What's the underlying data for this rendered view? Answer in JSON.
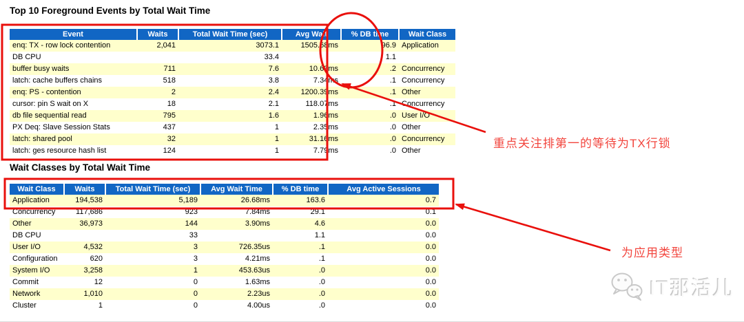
{
  "colors": {
    "table_header_bg": "#1166c4",
    "table_row_highlight": "#ffffcc",
    "annotation_red": "#e9100c",
    "annotation_text_red": "#f2453d",
    "watermark_gray": "#c8c8c8"
  },
  "top_events": {
    "title": "Top 10 Foreground Events by Total Wait Time",
    "table": {
      "headers": [
        "Event",
        "Waits",
        "Total Wait Time (sec)",
        "Avg Wait",
        "% DB time",
        "Wait Class"
      ],
      "rows": [
        [
          "enq: TX - row lock contention",
          "2,041",
          "3073.1",
          "1505.68ms",
          "96.9",
          "Application"
        ],
        [
          "DB CPU",
          "",
          "33.4",
          "",
          "1.1",
          ""
        ],
        [
          "buffer busy waits",
          "711",
          "7.6",
          "10.63ms",
          ".2",
          "Concurrency"
        ],
        [
          "latch: cache buffers chains",
          "518",
          "3.8",
          "7.34ms",
          ".1",
          "Concurrency"
        ],
        [
          "enq: PS - contention",
          "2",
          "2.4",
          "1200.39ms",
          ".1",
          "Other"
        ],
        [
          "cursor: pin S wait on X",
          "18",
          "2.1",
          "118.07ms",
          ".1",
          "Concurrency"
        ],
        [
          "db file sequential read",
          "795",
          "1.6",
          "1.96ms",
          ".0",
          "User I/O"
        ],
        [
          "PX Deq: Slave Session Stats",
          "437",
          "1",
          "2.35ms",
          ".0",
          "Other"
        ],
        [
          "latch: shared pool",
          "32",
          "1",
          "31.16ms",
          ".0",
          "Concurrency"
        ],
        [
          "latch: ges resource hash list",
          "124",
          "1",
          "7.79ms",
          ".0",
          "Other"
        ]
      ]
    }
  },
  "wait_classes": {
    "title": "Wait Classes by Total Wait Time",
    "table": {
      "headers": [
        "Wait Class",
        "Waits",
        "Total Wait Time (sec)",
        "Avg Wait Time",
        "% DB time",
        "Avg Active Sessions"
      ],
      "rows": [
        [
          "Application",
          "194,538",
          "5,189",
          "26.68ms",
          "163.6",
          "0.7"
        ],
        [
          "Concurrency",
          "117,686",
          "923",
          "7.84ms",
          "29.1",
          "0.1"
        ],
        [
          "Other",
          "36,973",
          "144",
          "3.90ms",
          "4.6",
          "0.0"
        ],
        [
          "DB CPU",
          "",
          "33",
          "",
          "1.1",
          "0.0"
        ],
        [
          "User I/O",
          "4,532",
          "3",
          "726.35us",
          ".1",
          "0.0"
        ],
        [
          "Configuration",
          "620",
          "3",
          "4.21ms",
          ".1",
          "0.0"
        ],
        [
          "System I/O",
          "3,258",
          "1",
          "453.63us",
          ".0",
          "0.0"
        ],
        [
          "Commit",
          "12",
          "0",
          "1.63ms",
          ".0",
          "0.0"
        ],
        [
          "Network",
          "1,010",
          "0",
          "2.23us",
          ".0",
          "0.0"
        ],
        [
          "Cluster",
          "1",
          "0",
          "4.00us",
          ".0",
          "0.0"
        ]
      ]
    }
  },
  "annotations": {
    "note_tx_lock": "重点关注排第一的等待为TX行锁",
    "note_app_type": "为应用类型"
  },
  "watermark": {
    "text": "IT那活儿",
    "icon": "wechat-logo-icon"
  }
}
